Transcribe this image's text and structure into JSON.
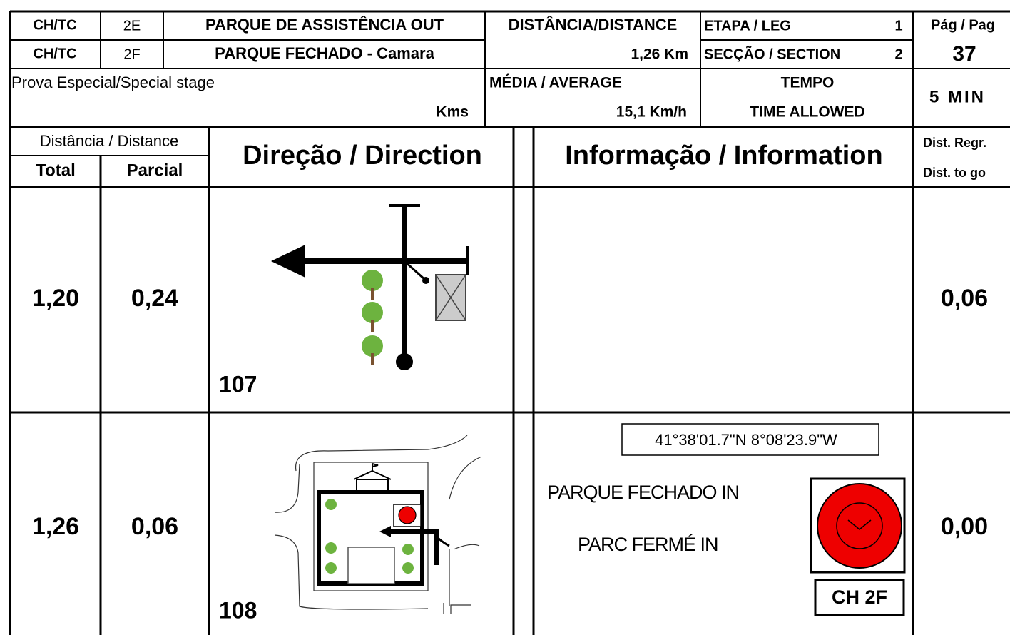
{
  "header": {
    "ch_tc_out": {
      "label": "CH/TC",
      "code": "2E",
      "name": "PARQUE DE ASSISTÊNCIA OUT"
    },
    "ch_tc_in": {
      "label": "CH/TC",
      "code": "2F",
      "name": "PARQUE FECHADO - Camara"
    },
    "distance": {
      "label": "DISTÂNCIA/DISTANCE",
      "value": "1,26 Km"
    },
    "leg": {
      "label": "ETAPA / LEG",
      "value": "1"
    },
    "section": {
      "label": "SECÇÃO / SECTION",
      "value": "2"
    },
    "page": {
      "label": "Pág / Pag",
      "value": "37"
    },
    "stage": {
      "label": "Prova Especial/Special stage",
      "unit": "Kms"
    },
    "average": {
      "label": "MÉDIA / AVERAGE",
      "value": "15,1 Km/h"
    },
    "time": {
      "label1": "TEMPO",
      "label2": "TIME ALLOWED",
      "value": "5 MIN"
    }
  },
  "columns": {
    "distance": "Distância / Distance",
    "total": "Total",
    "partial": "Parcial",
    "direction": "Direção / Direction",
    "information": "Informação / Information",
    "to_go_1": "Dist. Regr.",
    "to_go_2": "Dist. to go"
  },
  "rows": [
    {
      "total": "1,20",
      "partial": "0,24",
      "number": "107",
      "to_go": "0,06"
    },
    {
      "total": "1,26",
      "partial": "0,06",
      "number": "108",
      "coordinates": "41°38'01.7\"N 8°08'23.9\"W",
      "info1": "PARQUE FECHADO IN",
      "info2": "PARC FERMÉ IN",
      "control": "CH 2F",
      "to_go": "0,00"
    }
  ]
}
